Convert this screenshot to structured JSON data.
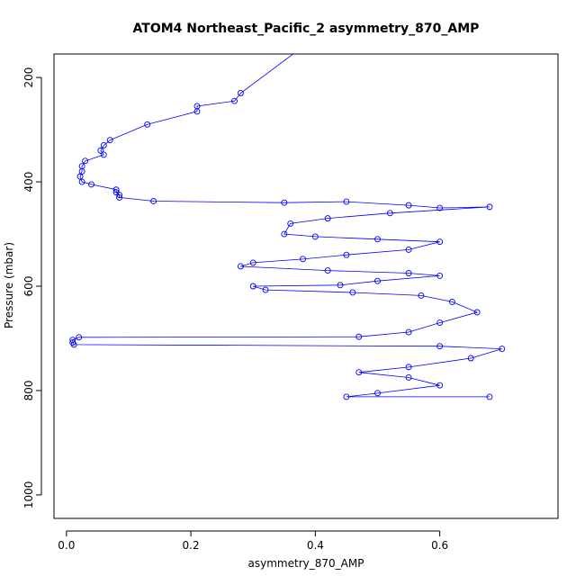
{
  "chart_data": {
    "type": "scatter",
    "title": "ATOM4 Northeast_Pacific_2 asymmetry_870_AMP",
    "xlabel": "asymmetry_870_AMP",
    "ylabel": "Pressure (mbar)",
    "xlim": [
      -0.02,
      0.79
    ],
    "ylim": [
      1045,
      155
    ],
    "y_inverted": true,
    "x_ticks": [
      0.0,
      0.2,
      0.4,
      0.6
    ],
    "x_tick_labels": [
      "0.0",
      "0.2",
      "0.4",
      "0.6"
    ],
    "y_ticks": [
      200,
      400,
      600,
      800,
      1000
    ],
    "y_tick_labels": [
      "200",
      "400",
      "600",
      "800",
      "1000"
    ],
    "grid": false,
    "series": [
      {
        "color": "#0000ff",
        "marker": "open-circle",
        "line": true,
        "points": [
          [
            0.37,
            150
          ],
          [
            0.28,
            230
          ],
          [
            0.27,
            245
          ],
          [
            0.21,
            255
          ],
          [
            0.21,
            265
          ],
          [
            0.13,
            290
          ],
          [
            0.07,
            320
          ],
          [
            0.06,
            330
          ],
          [
            0.055,
            340
          ],
          [
            0.06,
            348
          ],
          [
            0.03,
            360
          ],
          [
            0.025,
            370
          ],
          [
            0.025,
            380
          ],
          [
            0.022,
            390
          ],
          [
            0.025,
            400
          ],
          [
            0.04,
            405
          ],
          [
            0.08,
            415
          ],
          [
            0.08,
            420
          ],
          [
            0.085,
            425
          ],
          [
            0.085,
            430
          ],
          [
            0.14,
            437
          ],
          [
            0.35,
            440
          ],
          [
            0.45,
            438
          ],
          [
            0.55,
            445
          ],
          [
            0.6,
            450
          ],
          [
            0.68,
            448
          ],
          [
            0.52,
            460
          ],
          [
            0.42,
            470
          ],
          [
            0.36,
            480
          ],
          [
            0.35,
            500
          ],
          [
            0.4,
            505
          ],
          [
            0.5,
            510
          ],
          [
            0.6,
            515
          ],
          [
            0.55,
            530
          ],
          [
            0.45,
            540
          ],
          [
            0.38,
            548
          ],
          [
            0.3,
            555
          ],
          [
            0.28,
            562
          ],
          [
            0.42,
            570
          ],
          [
            0.55,
            575
          ],
          [
            0.6,
            580
          ],
          [
            0.5,
            590
          ],
          [
            0.44,
            598
          ],
          [
            0.3,
            600
          ],
          [
            0.32,
            607
          ],
          [
            0.46,
            612
          ],
          [
            0.57,
            618
          ],
          [
            0.62,
            630
          ],
          [
            0.66,
            650
          ],
          [
            0.6,
            670
          ],
          [
            0.55,
            688
          ],
          [
            0.47,
            697
          ],
          [
            0.02,
            698
          ],
          [
            0.01,
            703
          ],
          [
            0.01,
            708
          ],
          [
            0.012,
            712
          ],
          [
            0.6,
            715
          ],
          [
            0.7,
            720
          ],
          [
            0.65,
            738
          ],
          [
            0.55,
            755
          ],
          [
            0.47,
            765
          ],
          [
            0.55,
            775
          ],
          [
            0.6,
            790
          ],
          [
            0.5,
            805
          ],
          [
            0.45,
            812
          ],
          [
            0.68,
            812
          ]
        ]
      }
    ]
  }
}
